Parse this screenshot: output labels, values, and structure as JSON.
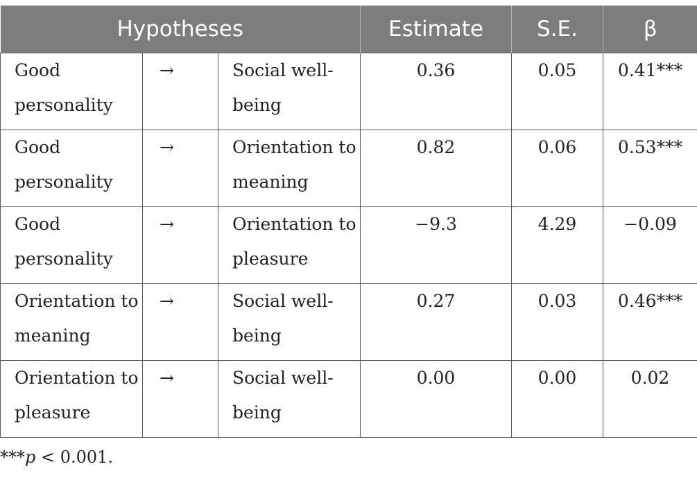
{
  "table": {
    "headers": [
      "Hypotheses",
      "Estimate",
      "S.E.",
      "β"
    ],
    "rows": [
      {
        "from": "Good personality",
        "arrow": "→",
        "to": "Social well-being",
        "estimate": "0.36",
        "se": "0.05",
        "beta": "0.41***"
      },
      {
        "from": "Good personality",
        "arrow": "→",
        "to": "Orientation to meaning",
        "estimate": "0.82",
        "se": "0.06",
        "beta": "0.53***"
      },
      {
        "from": "Good personality",
        "arrow": "→",
        "to": "Orientation to pleasure",
        "estimate": "−9.3",
        "se": "4.29",
        "beta": "−0.09"
      },
      {
        "from": "Orientation to meaning",
        "arrow": "→",
        "to": "Social well-being",
        "estimate": "0.27",
        "se": "0.03",
        "beta": "0.46***"
      },
      {
        "from": "Orientation to pleasure",
        "arrow": "→",
        "to": "Social well-being",
        "estimate": "0.00",
        "se": "0.00",
        "beta": "0.02"
      }
    ]
  },
  "footnote": {
    "stars": "***",
    "p": "p",
    "rest": " < 0.001."
  }
}
